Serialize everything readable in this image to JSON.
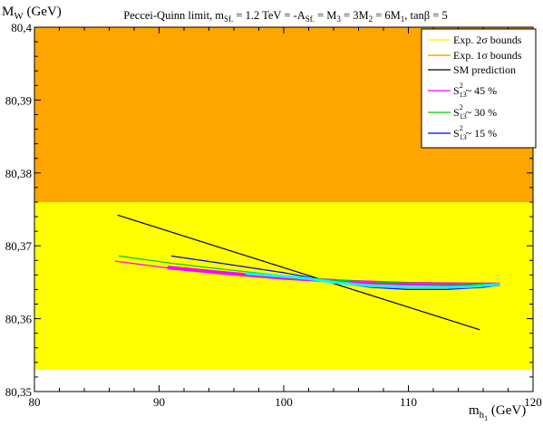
{
  "chart_data": {
    "type": "line",
    "title": "Peccei-Quinn limit, m_Sf. = 1.2 TeV = -A_Sf. = M_3 = 3M_2 = 6M_1, tanβ = 5",
    "title_parts": {
      "t1": "Peccei-Quinn limit, m",
      "t1_sub": "Sf.",
      "t2": " = 1.2 TeV = -A",
      "t2_sub": "Sf.",
      "t3": " = M",
      "t3_sub": "3",
      "t4": " = 3M",
      "t4_sub": "2",
      "t5": " = 6M",
      "t5_sub": "1",
      "t6": ", tanβ = 5"
    },
    "ylabel_main": "M",
    "ylabel_sub": "W",
    "ylabel_unit": " (GeV)",
    "xlabel_main": "m",
    "xlabel_sub": "h",
    "xlabel_subsub": "1",
    "xlabel_unit": " (GeV)",
    "xlim": [
      80,
      120
    ],
    "ylim": [
      80.35,
      80.4
    ],
    "x_ticks": [
      {
        "value": 80,
        "label": "80"
      },
      {
        "value": 90,
        "label": "90"
      },
      {
        "value": 100,
        "label": "100"
      },
      {
        "value": 110,
        "label": "110"
      },
      {
        "value": 120,
        "label": "120"
      }
    ],
    "y_ticks": [
      {
        "value": 80.35,
        "label": "80,35"
      },
      {
        "value": 80.36,
        "label": "80,36"
      },
      {
        "value": 80.37,
        "label": "80,37"
      },
      {
        "value": 80.38,
        "label": "80,38"
      },
      {
        "value": 80.39,
        "label": "80,39"
      },
      {
        "value": 80.4,
        "label": "80,4"
      }
    ],
    "bands": [
      {
        "name": "Exp. 2σ bounds",
        "color": "#ffff00",
        "y_low": 80.353,
        "y_high": 80.4
      },
      {
        "name": "Exp. 1σ bounds",
        "color": "#ffa500",
        "y_low": 80.376,
        "y_high": 80.4
      }
    ],
    "series": [
      {
        "name": "SM prediction",
        "color": "#000000",
        "width": 1.2,
        "x": [
          86.7,
          115.7
        ],
        "y": [
          80.3742,
          80.3585
        ]
      },
      {
        "name": "S13² ~ 45 %",
        "color": "#ff00ff",
        "width": 1.2,
        "x": [
          86.5,
          91,
          95,
          100,
          104,
          108,
          112,
          115.5,
          117.2
        ],
        "y": [
          80.3679,
          80.3669,
          80.3662,
          80.3656,
          80.3652,
          80.365,
          80.3649,
          80.3648,
          80.3647
        ]
      },
      {
        "name": "S13² ~ 45 % (thick)",
        "color": "#ff00ff",
        "width": 4,
        "x": [
          90.8,
          95,
          100,
          105,
          110,
          115,
          117.2
        ],
        "y": [
          80.367,
          80.3663,
          80.3656,
          80.3651,
          80.3648,
          80.3647,
          80.3647
        ]
      },
      {
        "name": "S13² ~ 30 %",
        "color": "#00cc00",
        "width": 1.2,
        "x": [
          86.8,
          91,
          95,
          100,
          104,
          108,
          112,
          117.2
        ],
        "y": [
          80.3686,
          80.3676,
          80.3668,
          80.3659,
          80.3653,
          80.365,
          80.3648,
          80.3647
        ]
      },
      {
        "name": "S13² ~ 15 %",
        "color": "#0000ff",
        "width": 1.2,
        "x": [
          91,
          95,
          100,
          102,
          104,
          107,
          110,
          113,
          116,
          117.2
        ],
        "y": [
          80.3686,
          80.3676,
          80.3663,
          80.3657,
          80.365,
          80.3643,
          80.364,
          80.364,
          80.3643,
          80.3646
        ]
      },
      {
        "name": "cyan band",
        "color": "#00ffff",
        "width": 3,
        "x": [
          97,
          100,
          102,
          104,
          107,
          110,
          113,
          115,
          117.2
        ],
        "y": [
          80.3662,
          80.3658,
          80.3655,
          80.365,
          80.3645,
          80.3643,
          80.3643,
          80.3644,
          80.3647
        ]
      }
    ],
    "legend": {
      "position": "top-right",
      "entries": [
        {
          "label": "Exp. 2σ bounds",
          "color": "#ffff00"
        },
        {
          "label": "Exp. 1σ bounds",
          "color": "#ffa500"
        },
        {
          "label": "SM prediction",
          "color": "#000000"
        },
        {
          "main": "S",
          "sub": "13",
          "sup": "2",
          "rest": " ~ 45 %",
          "color": "#ff00ff"
        },
        {
          "main": "S",
          "sub": "13",
          "sup": "2",
          "rest": " ~ 30 %",
          "color": "#00cc00"
        },
        {
          "main": "S",
          "sub": "13",
          "sup": "2",
          "rest": " ~ 15 %",
          "color": "#0000ff"
        }
      ]
    }
  }
}
